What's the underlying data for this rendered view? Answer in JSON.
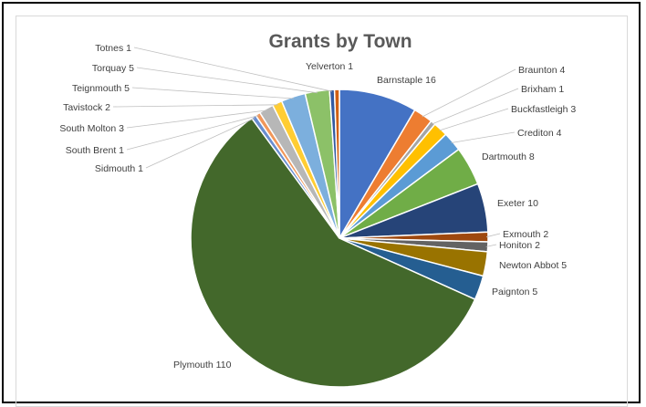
{
  "chart_data": {
    "type": "pie",
    "title": "Grants by Town",
    "start_angle_deg": 0,
    "direction": "clockwise",
    "slices": [
      {
        "label": "Barnstaple",
        "value": 16,
        "color": "#4472c4"
      },
      {
        "label": "Braunton",
        "value": 4,
        "color": "#ed7d31"
      },
      {
        "label": "Brixham",
        "value": 1,
        "color": "#a5a5a5"
      },
      {
        "label": "Buckfastleigh",
        "value": 3,
        "color": "#ffc000"
      },
      {
        "label": "Crediton",
        "value": 4,
        "color": "#5b9bd5"
      },
      {
        "label": "Dartmouth",
        "value": 8,
        "color": "#70ad47"
      },
      {
        "label": "Exeter",
        "value": 10,
        "color": "#264478"
      },
      {
        "label": "Exmouth",
        "value": 2,
        "color": "#9e480e"
      },
      {
        "label": "Honiton",
        "value": 2,
        "color": "#636363"
      },
      {
        "label": "Newton Abbot",
        "value": 5,
        "color": "#997300"
      },
      {
        "label": "Paignton",
        "value": 5,
        "color": "#255e91"
      },
      {
        "label": "Plymouth",
        "value": 110,
        "color": "#43682b"
      },
      {
        "label": "Sidmouth",
        "value": 1,
        "color": "#698ed0"
      },
      {
        "label": "South Brent",
        "value": 1,
        "color": "#f1975a"
      },
      {
        "label": "South Molton",
        "value": 3,
        "color": "#b7b7b7"
      },
      {
        "label": "Tavistock",
        "value": 2,
        "color": "#ffcd33"
      },
      {
        "label": "Teignmouth",
        "value": 5,
        "color": "#7cafdd"
      },
      {
        "label": "Torquay",
        "value": 5,
        "color": "#8cc168"
      },
      {
        "label": "Totnes",
        "value": 1,
        "color": "#335aa1"
      },
      {
        "label": "Yelverton",
        "value": 1,
        "color": "#d26012"
      }
    ]
  }
}
